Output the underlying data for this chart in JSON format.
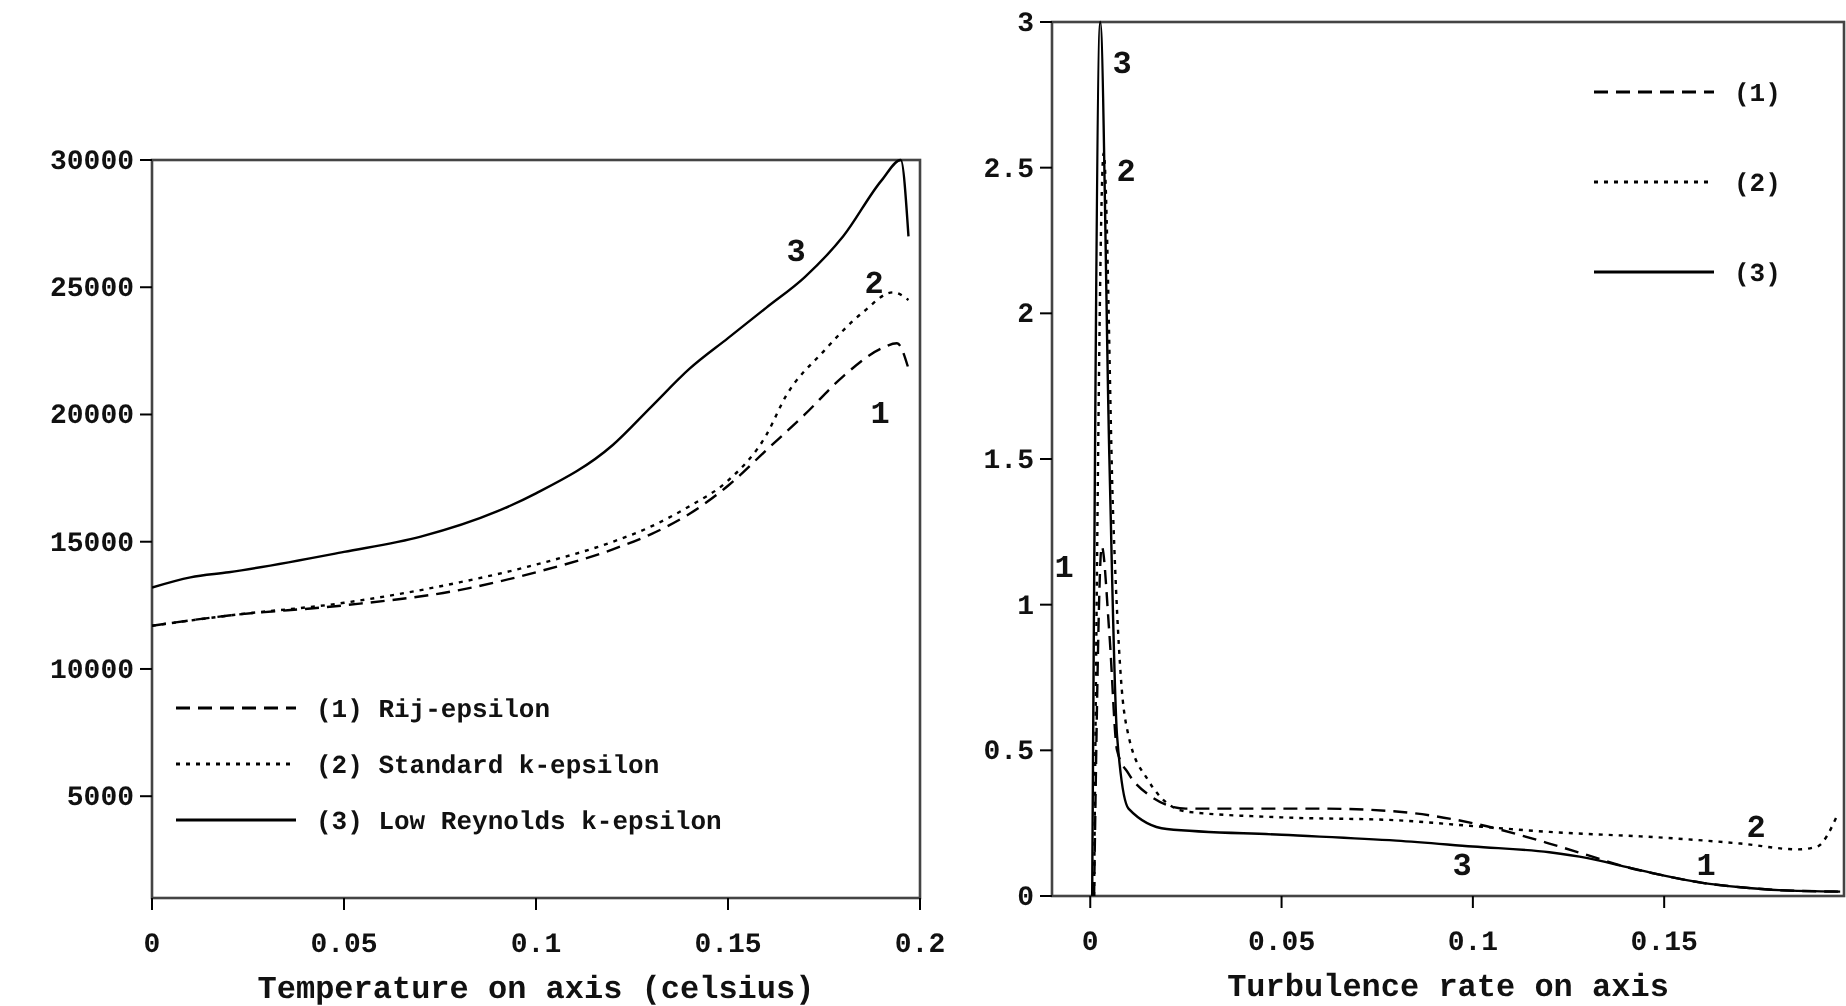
{
  "chart_data": [
    {
      "type": "line",
      "xlabel": "Temperature on axis (celsius)",
      "xlim": [
        0,
        0.2
      ],
      "xticks": [
        0,
        0.05,
        0.1,
        0.15,
        {
          "value": 0.2,
          "label": "0.2"
        }
      ],
      "ylim": [
        1000,
        30000
      ],
      "yticks": [
        5000,
        10000,
        15000,
        20000,
        25000,
        30000
      ],
      "legend": "bottom left",
      "grid": false,
      "series": [
        {
          "name": "(1) Rij-epsilon",
          "color": "#000000",
          "line_style": "dashed",
          "x": [
            0,
            0.02,
            0.05,
            0.08,
            0.1,
            0.12,
            0.13,
            0.14,
            0.15,
            0.16,
            0.17,
            0.18,
            0.19,
            0.194,
            0.197
          ],
          "values": [
            11700,
            12100,
            12500,
            13100,
            13800,
            14700,
            15300,
            16100,
            17200,
            18600,
            20000,
            21500,
            22600,
            22800,
            21800
          ]
        },
        {
          "name": "(2) Standard k-epsilon",
          "color": "#000000",
          "line_style": "dotted",
          "x": [
            0,
            0.02,
            0.05,
            0.08,
            0.1,
            0.12,
            0.13,
            0.14,
            0.15,
            0.16,
            0.165,
            0.175,
            0.185,
            0.193,
            0.197
          ],
          "values": [
            11700,
            12100,
            12600,
            13400,
            14100,
            15000,
            15600,
            16400,
            17400,
            19200,
            20700,
            22500,
            24000,
            24800,
            24500
          ]
        },
        {
          "name": "(3) Low Reynolds k-epsilon",
          "color": "#000000",
          "line_style": "solid",
          "x": [
            0,
            0.01,
            0.02,
            0.05,
            0.07,
            0.09,
            0.1,
            0.12,
            0.13,
            0.14,
            0.15,
            0.16,
            0.17,
            0.18,
            0.19,
            0.195,
            0.197
          ],
          "values": [
            13200,
            13600,
            13800,
            14600,
            15200,
            16200,
            16900,
            18800,
            20300,
            21800,
            23000,
            24200,
            25400,
            27000,
            29200,
            30000,
            27000
          ]
        }
      ],
      "annotations": [
        "3",
        "2",
        "1"
      ]
    },
    {
      "type": "line",
      "xlabel": "Turbulence rate on axis",
      "xlim": [
        -0.01,
        0.197
      ],
      "xticks": [
        0,
        0.05,
        0.1,
        0.15
      ],
      "ylim": [
        0,
        3
      ],
      "yticks": [
        0,
        0.5,
        1,
        1.5,
        2,
        2.5,
        3
      ],
      "legend": "top right",
      "grid": false,
      "series": [
        {
          "name": "(1)",
          "color": "#000000",
          "line_style": "dashed",
          "x": [
            0.001,
            0.003,
            0.005,
            0.007,
            0.01,
            0.015,
            0.025,
            0.06,
            0.08,
            0.1,
            0.12,
            0.13,
            0.14,
            0.15,
            0.16,
            0.17,
            0.18,
            0.196
          ],
          "values": [
            0,
            1.2,
            0.9,
            0.5,
            0.42,
            0.35,
            0.3,
            0.3,
            0.29,
            0.25,
            0.18,
            0.14,
            0.1,
            0.07,
            0.045,
            0.03,
            0.02,
            0.015
          ]
        },
        {
          "name": "(2)",
          "color": "#000000",
          "line_style": "dotted",
          "x": [
            0.001,
            0.0035,
            0.006,
            0.008,
            0.01,
            0.015,
            0.025,
            0.05,
            0.08,
            0.1,
            0.12,
            0.15,
            0.17,
            0.185,
            0.19,
            0.195
          ],
          "values": [
            0,
            2.55,
            1.3,
            0.75,
            0.55,
            0.4,
            0.29,
            0.27,
            0.26,
            0.24,
            0.22,
            0.2,
            0.18,
            0.16,
            0.17,
            0.27
          ]
        },
        {
          "name": "(3)",
          "color": "#000000",
          "line_style": "solid",
          "x": [
            0.0005,
            0.0026,
            0.005,
            0.007,
            0.01,
            0.02,
            0.05,
            0.08,
            0.1,
            0.12,
            0.13,
            0.14,
            0.15,
            0.16,
            0.17,
            0.18,
            0.196
          ],
          "values": [
            0,
            3,
            1.5,
            0.55,
            0.3,
            0.23,
            0.21,
            0.19,
            0.17,
            0.15,
            0.13,
            0.1,
            0.07,
            0.045,
            0.03,
            0.02,
            0.015
          ]
        }
      ],
      "annotations": [
        "3",
        "2",
        "1",
        "3",
        "1",
        "2"
      ]
    }
  ]
}
